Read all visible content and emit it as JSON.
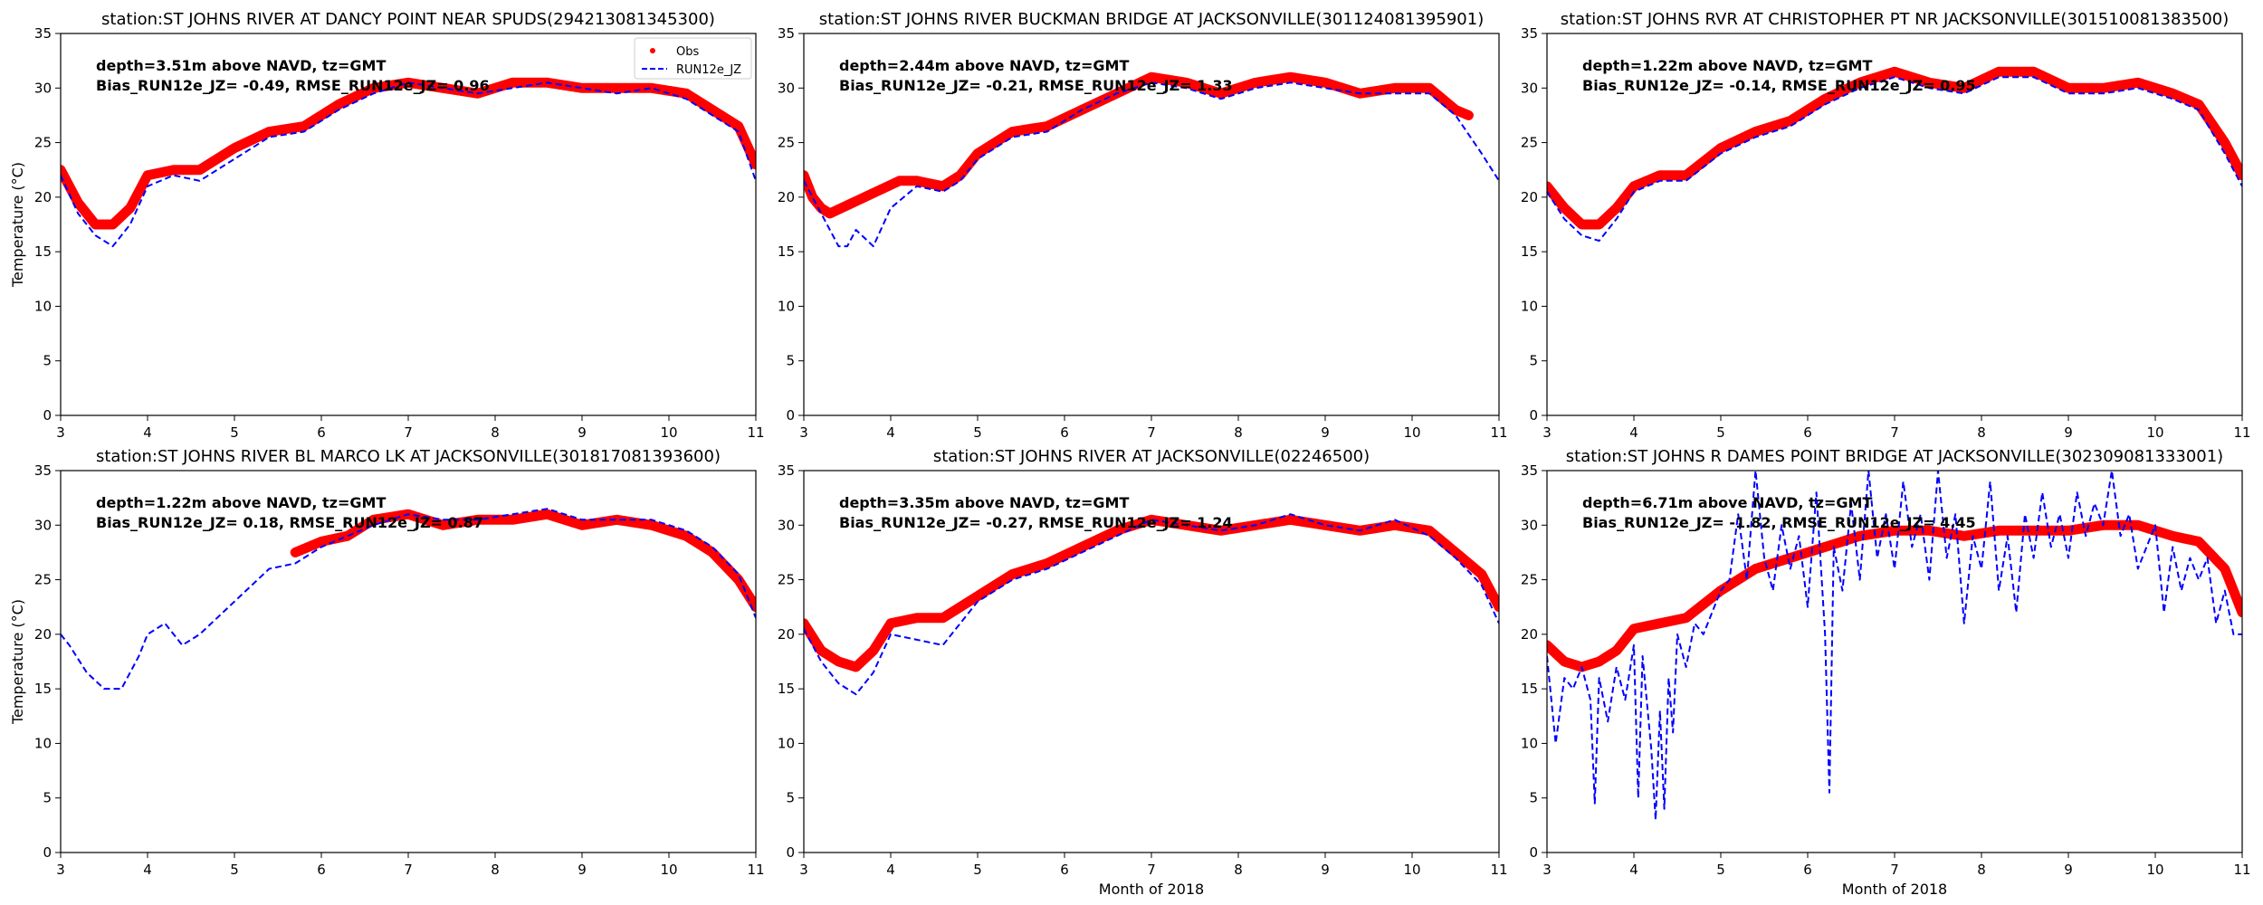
{
  "chart_data": [
    {
      "type": "scatter",
      "title": "station:ST JOHNS RIVER AT DANCY POINT NEAR SPUDS(294213081345300)",
      "annotation": [
        "depth=3.51m above NAVD, tz=GMT",
        "Bias_RUN12e_JZ= -0.49, RMSE_RUN12e_JZ= 0.96"
      ],
      "xlabel": "",
      "ylabel": "Temperature ($^\\circ$C)",
      "xlim": [
        3,
        11
      ],
      "ylim": [
        0,
        35
      ],
      "xticks": [
        "3",
        "4",
        "5",
        "6",
        "7",
        "8",
        "9",
        "10",
        "11"
      ],
      "yticks": [
        "0",
        "5",
        "10",
        "15",
        "20",
        "25",
        "30",
        "35"
      ],
      "legend": [
        "Obs",
        "RUN12e_JZ"
      ],
      "series": [
        {
          "name": "Obs",
          "x": [
            3.0,
            3.2,
            3.4,
            3.6,
            3.8,
            4.0,
            4.3,
            4.6,
            5.0,
            5.4,
            5.8,
            6.2,
            6.6,
            7.0,
            7.4,
            7.8,
            8.2,
            8.6,
            9.0,
            9.4,
            9.8,
            10.2,
            10.5,
            10.8,
            11.0
          ],
          "values": [
            22.5,
            19.5,
            17.5,
            17.5,
            19.0,
            22.0,
            22.5,
            22.5,
            24.5,
            26.0,
            26.5,
            28.5,
            30.0,
            30.5,
            30.0,
            29.5,
            30.5,
            30.5,
            30.0,
            30.0,
            30.0,
            29.5,
            28.0,
            26.5,
            23.0
          ]
        },
        {
          "name": "RUN12e_JZ",
          "x": [
            3.0,
            3.2,
            3.4,
            3.6,
            3.8,
            4.0,
            4.3,
            4.6,
            5.0,
            5.4,
            5.8,
            6.2,
            6.6,
            7.0,
            7.4,
            7.8,
            8.2,
            8.6,
            9.0,
            9.4,
            9.8,
            10.2,
            10.5,
            10.8,
            11.0
          ],
          "values": [
            22.0,
            18.5,
            16.5,
            15.5,
            17.5,
            21.0,
            22.0,
            21.5,
            23.5,
            25.5,
            26.0,
            28.0,
            29.5,
            30.5,
            30.0,
            29.5,
            30.0,
            30.5,
            30.0,
            29.5,
            30.0,
            29.0,
            27.5,
            26.0,
            21.5
          ]
        }
      ]
    },
    {
      "type": "scatter",
      "title": "station:ST JOHNS RIVER BUCKMAN BRIDGE AT JACKSONVILLE(301124081395901)",
      "annotation": [
        "depth=2.44m above NAVD, tz=GMT",
        "Bias_RUN12e_JZ= -0.21, RMSE_RUN12e_JZ= 1.33"
      ],
      "xlabel": "",
      "ylabel": "",
      "xlim": [
        3,
        11
      ],
      "ylim": [
        0,
        35
      ],
      "xticks": [
        "3",
        "4",
        "5",
        "6",
        "7",
        "8",
        "9",
        "10",
        "11"
      ],
      "yticks": [
        "0",
        "5",
        "10",
        "15",
        "20",
        "25",
        "30",
        "35"
      ],
      "series": [
        {
          "name": "Obs",
          "x": [
            3.0,
            3.1,
            3.2,
            3.3,
            4.1,
            4.3,
            4.6,
            4.8,
            5.0,
            5.4,
            5.8,
            6.2,
            6.6,
            7.0,
            7.4,
            7.8,
            8.2,
            8.6,
            9.0,
            9.4,
            9.8,
            10.2,
            10.5,
            10.65
          ],
          "values": [
            22.0,
            20.0,
            19.0,
            18.5,
            21.5,
            21.5,
            21.0,
            22.0,
            24.0,
            26.0,
            26.5,
            28.0,
            29.5,
            31.0,
            30.5,
            29.5,
            30.5,
            31.0,
            30.5,
            29.5,
            30.0,
            30.0,
            28.0,
            27.5
          ]
        },
        {
          "name": "RUN12e_JZ",
          "x": [
            3.0,
            3.2,
            3.4,
            3.5,
            3.6,
            3.8,
            4.0,
            4.3,
            4.6,
            4.8,
            5.0,
            5.4,
            5.8,
            6.2,
            6.6,
            7.0,
            7.4,
            7.8,
            8.2,
            8.6,
            9.0,
            9.4,
            9.8,
            10.2,
            10.5,
            10.8,
            11.0
          ],
          "values": [
            21.5,
            18.5,
            15.5,
            15.5,
            17.0,
            15.5,
            19.0,
            21.0,
            20.5,
            21.5,
            23.5,
            25.5,
            26.0,
            28.0,
            29.5,
            30.5,
            30.0,
            29.0,
            30.0,
            30.5,
            30.0,
            29.5,
            29.5,
            29.5,
            27.5,
            24.0,
            21.5
          ]
        }
      ]
    },
    {
      "type": "scatter",
      "title": "station:ST JOHNS RVR AT CHRISTOPHER PT NR JACKSONVILLE(301510081383500)",
      "annotation": [
        "depth=1.22m above NAVD, tz=GMT",
        "Bias_RUN12e_JZ= -0.14, RMSE_RUN12e_JZ= 0.95"
      ],
      "xlabel": "",
      "ylabel": "",
      "xlim": [
        3,
        11
      ],
      "ylim": [
        0,
        35
      ],
      "xticks": [
        "3",
        "4",
        "5",
        "6",
        "7",
        "8",
        "9",
        "10",
        "11"
      ],
      "yticks": [
        "0",
        "5",
        "10",
        "15",
        "20",
        "25",
        "30",
        "35"
      ],
      "series": [
        {
          "name": "Obs",
          "x": [
            3.0,
            3.2,
            3.4,
            3.6,
            3.8,
            4.0,
            4.3,
            4.6,
            5.0,
            5.4,
            5.8,
            6.2,
            6.6,
            7.0,
            7.4,
            7.8,
            8.2,
            8.6,
            9.0,
            9.4,
            9.8,
            10.2,
            10.5,
            10.8,
            11.0
          ],
          "values": [
            21.0,
            19.0,
            17.5,
            17.5,
            19.0,
            21.0,
            22.0,
            22.0,
            24.5,
            26.0,
            27.0,
            29.0,
            30.5,
            31.5,
            30.5,
            30.0,
            31.5,
            31.5,
            30.0,
            30.0,
            30.5,
            29.5,
            28.5,
            25.0,
            22.0
          ]
        },
        {
          "name": "RUN12e_JZ",
          "x": [
            3.0,
            3.2,
            3.4,
            3.6,
            3.8,
            4.0,
            4.3,
            4.6,
            5.0,
            5.4,
            5.8,
            6.2,
            6.6,
            7.0,
            7.4,
            7.8,
            8.2,
            8.6,
            9.0,
            9.4,
            9.8,
            10.2,
            10.5,
            10.8,
            11.0
          ],
          "values": [
            20.5,
            18.0,
            16.5,
            16.0,
            18.0,
            20.5,
            21.5,
            21.5,
            24.0,
            25.5,
            26.5,
            28.5,
            30.0,
            31.0,
            30.0,
            29.5,
            31.0,
            31.0,
            29.5,
            29.5,
            30.0,
            29.0,
            28.0,
            24.0,
            21.0
          ]
        }
      ]
    },
    {
      "type": "scatter",
      "title": "station:ST JOHNS RIVER BL MARCO LK AT JACKSONVILLE(301817081393600)",
      "annotation": [
        "depth=1.22m above NAVD, tz=GMT",
        "Bias_RUN12e_JZ=  0.18, RMSE_RUN12e_JZ= 0.87"
      ],
      "xlabel": "",
      "ylabel": "Temperature ($^\\circ$C)",
      "xlim": [
        3,
        11
      ],
      "ylim": [
        0,
        35
      ],
      "xticks": [
        "3",
        "4",
        "5",
        "6",
        "7",
        "8",
        "9",
        "10",
        "11"
      ],
      "yticks": [
        "0",
        "5",
        "10",
        "15",
        "20",
        "25",
        "30",
        "35"
      ],
      "series": [
        {
          "name": "Obs",
          "x": [
            5.7,
            6.0,
            6.3,
            6.6,
            7.0,
            7.4,
            7.8,
            8.2,
            8.6,
            9.0,
            9.4,
            9.8,
            10.2,
            10.5,
            10.8,
            11.0
          ],
          "values": [
            27.5,
            28.5,
            29.0,
            30.5,
            31.0,
            30.0,
            30.5,
            30.5,
            31.0,
            30.0,
            30.5,
            30.0,
            29.0,
            27.5,
            25.0,
            22.5
          ]
        },
        {
          "name": "RUN12e_JZ",
          "x": [
            3.0,
            3.1,
            3.3,
            3.5,
            3.7,
            3.9,
            4.0,
            4.2,
            4.4,
            4.6,
            4.8,
            5.0,
            5.2,
            5.4,
            5.7,
            6.0,
            6.3,
            6.6,
            7.0,
            7.4,
            7.8,
            8.2,
            8.6,
            9.0,
            9.4,
            9.8,
            10.2,
            10.5,
            10.8,
            11.0
          ],
          "values": [
            20.0,
            19.0,
            16.5,
            15.0,
            15.0,
            18.0,
            20.0,
            21.0,
            19.0,
            20.0,
            21.5,
            23.0,
            24.5,
            26.0,
            26.5,
            28.0,
            29.0,
            30.0,
            31.0,
            30.5,
            30.5,
            31.0,
            31.5,
            30.5,
            30.5,
            30.5,
            29.5,
            28.0,
            25.5,
            21.5
          ]
        }
      ]
    },
    {
      "type": "scatter",
      "title": "station:ST JOHNS RIVER AT JACKSONVILLE(02246500)",
      "annotation": [
        "depth=3.35m above NAVD, tz=GMT",
        "Bias_RUN12e_JZ= -0.27, RMSE_RUN12e_JZ= 1.24"
      ],
      "xlabel": "Month of 2018",
      "ylabel": "",
      "xlim": [
        3,
        11
      ],
      "ylim": [
        0,
        35
      ],
      "xticks": [
        "3",
        "4",
        "5",
        "6",
        "7",
        "8",
        "9",
        "10",
        "11"
      ],
      "yticks": [
        "0",
        "5",
        "10",
        "15",
        "20",
        "25",
        "30",
        "35"
      ],
      "series": [
        {
          "name": "Obs",
          "x": [
            3.0,
            3.2,
            3.4,
            3.6,
            3.8,
            4.0,
            4.3,
            4.6,
            5.0,
            5.4,
            5.8,
            6.2,
            6.6,
            7.0,
            7.4,
            7.8,
            8.2,
            8.6,
            9.0,
            9.4,
            9.8,
            10.2,
            10.5,
            10.8,
            11.0
          ],
          "values": [
            21.0,
            18.5,
            17.5,
            17.0,
            18.5,
            21.0,
            21.5,
            21.5,
            23.5,
            25.5,
            26.5,
            28.0,
            29.5,
            30.5,
            30.0,
            29.5,
            30.0,
            30.5,
            30.0,
            29.5,
            30.0,
            29.5,
            27.5,
            25.5,
            22.5
          ]
        },
        {
          "name": "RUN12e_JZ",
          "x": [
            3.0,
            3.2,
            3.4,
            3.6,
            3.8,
            4.0,
            4.3,
            4.6,
            5.0,
            5.4,
            5.8,
            6.2,
            6.6,
            7.0,
            7.4,
            7.8,
            8.2,
            8.6,
            9.0,
            9.4,
            9.8,
            10.2,
            10.5,
            10.8,
            11.0
          ],
          "values": [
            20.5,
            17.5,
            15.5,
            14.5,
            16.5,
            20.0,
            19.5,
            19.0,
            23.0,
            25.0,
            26.0,
            27.5,
            29.0,
            30.5,
            30.0,
            29.5,
            30.0,
            31.0,
            30.0,
            29.5,
            30.5,
            29.0,
            27.0,
            24.5,
            21.0
          ]
        }
      ]
    },
    {
      "type": "scatter",
      "title": "station:ST JOHNS R DAMES POINT BRIDGE AT JACKSONVILLE(302309081333001)",
      "annotation": [
        "depth=6.71m above NAVD, tz=GMT",
        "Bias_RUN12e_JZ= -1.82, RMSE_RUN12e_JZ= 4.45"
      ],
      "xlabel": "Month of 2018",
      "ylabel": "",
      "xlim": [
        3,
        11
      ],
      "ylim": [
        0,
        35
      ],
      "xticks": [
        "3",
        "4",
        "5",
        "6",
        "7",
        "8",
        "9",
        "10",
        "11"
      ],
      "yticks": [
        "0",
        "5",
        "10",
        "15",
        "20",
        "25",
        "30",
        "35"
      ],
      "series": [
        {
          "name": "Obs",
          "x": [
            3.0,
            3.2,
            3.4,
            3.6,
            3.8,
            4.0,
            4.3,
            4.6,
            5.0,
            5.4,
            5.8,
            6.2,
            6.6,
            7.0,
            7.4,
            7.8,
            8.2,
            8.6,
            9.0,
            9.4,
            9.8,
            10.2,
            10.5,
            10.8,
            11.0
          ],
          "values": [
            19.0,
            17.5,
            17.0,
            17.5,
            18.5,
            20.5,
            21.0,
            21.5,
            24.0,
            26.0,
            27.0,
            28.0,
            29.0,
            29.5,
            29.5,
            29.0,
            29.5,
            29.5,
            29.5,
            30.0,
            30.0,
            29.0,
            28.5,
            26.0,
            22.0
          ]
        },
        {
          "name": "RUN12e_JZ",
          "x": [
            3.0,
            3.1,
            3.2,
            3.3,
            3.4,
            3.5,
            3.55,
            3.6,
            3.7,
            3.8,
            3.9,
            4.0,
            4.05,
            4.1,
            4.2,
            4.25,
            4.3,
            4.35,
            4.4,
            4.45,
            4.5,
            4.6,
            4.7,
            4.8,
            4.9,
            5.0,
            5.1,
            5.2,
            5.3,
            5.4,
            5.5,
            5.6,
            5.7,
            5.8,
            5.9,
            6.0,
            6.1,
            6.2,
            6.25,
            6.3,
            6.4,
            6.5,
            6.6,
            6.7,
            6.8,
            6.9,
            7.0,
            7.1,
            7.2,
            7.3,
            7.4,
            7.5,
            7.6,
            7.7,
            7.8,
            7.9,
            8.0,
            8.1,
            8.2,
            8.3,
            8.4,
            8.5,
            8.6,
            8.7,
            8.8,
            8.9,
            9.0,
            9.1,
            9.2,
            9.3,
            9.4,
            9.5,
            9.6,
            9.7,
            9.8,
            9.9,
            10.0,
            10.1,
            10.2,
            10.3,
            10.4,
            10.5,
            10.6,
            10.7,
            10.8,
            10.9,
            11.0
          ],
          "values": [
            18.0,
            10.0,
            16.0,
            15.0,
            17.0,
            14.0,
            4.5,
            16.0,
            12.0,
            17.0,
            14.0,
            19.0,
            5.0,
            18.0,
            9.5,
            3.0,
            13.0,
            4.0,
            16.0,
            11.0,
            20.0,
            17.0,
            21.0,
            20.0,
            22.0,
            24.0,
            25.0,
            31.0,
            25.0,
            35.0,
            27.0,
            24.0,
            30.0,
            26.0,
            29.0,
            22.5,
            33.0,
            20.0,
            5.5,
            28.0,
            24.0,
            32.0,
            25.0,
            35.0,
            27.0,
            31.0,
            26.0,
            34.0,
            28.0,
            31.0,
            25.0,
            35.0,
            27.0,
            31.0,
            21.0,
            29.0,
            26.0,
            34.0,
            24.0,
            29.0,
            22.0,
            31.0,
            27.0,
            33.0,
            28.0,
            31.0,
            27.0,
            33.0,
            29.0,
            32.0,
            30.0,
            35.0,
            29.0,
            31.0,
            26.0,
            28.0,
            30.0,
            22.0,
            28.0,
            24.0,
            27.0,
            25.0,
            27.0,
            21.0,
            24.0,
            20.0,
            20.0
          ]
        }
      ]
    }
  ]
}
